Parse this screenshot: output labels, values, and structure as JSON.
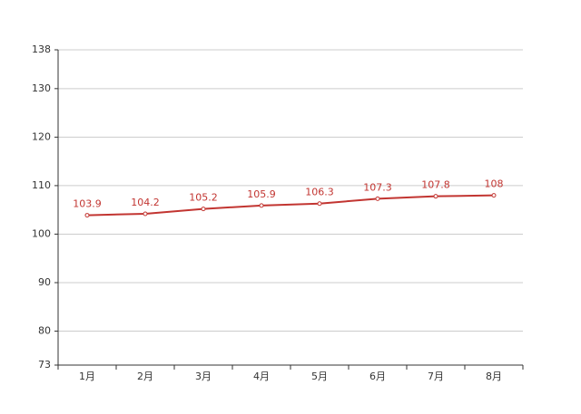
{
  "chart_data": {
    "type": "line",
    "categories": [
      "1月",
      "2月",
      "3月",
      "4月",
      "5月",
      "6月",
      "7月",
      "8月"
    ],
    "series": [
      {
        "color": "#c23531",
        "values": [
          103.9,
          104.2,
          105.2,
          105.9,
          106.3,
          107.3,
          107.8,
          108
        ]
      }
    ],
    "ylim": [
      73,
      138
    ],
    "yticks": [
      73,
      80,
      90,
      100,
      110,
      120,
      130,
      138
    ],
    "grid": true
  }
}
